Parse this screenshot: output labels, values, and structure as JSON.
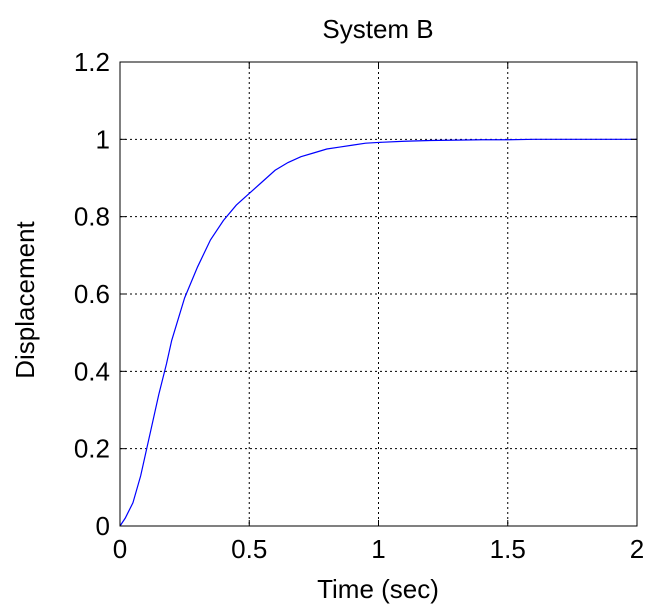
{
  "chart_data": {
    "type": "line",
    "title": "System B",
    "xlabel": "Time (sec)",
    "ylabel": "Displacement",
    "xlim": [
      0,
      2
    ],
    "ylim": [
      0,
      1.2
    ],
    "xticks": [
      0,
      0.5,
      1,
      1.5,
      2
    ],
    "yticks": [
      0,
      0.2,
      0.4,
      0.6,
      0.8,
      1,
      1.2
    ],
    "xtick_labels": [
      "0",
      "0.5",
      "1",
      "1.5",
      "2"
    ],
    "ytick_labels": [
      "0",
      "0.2",
      "0.4",
      "0.6",
      "0.8",
      "1",
      "1.2"
    ],
    "grid": true,
    "series": [
      {
        "color": "#0000ff",
        "x": [
          0,
          0.02,
          0.05,
          0.08,
          0.1,
          0.12,
          0.15,
          0.18,
          0.2,
          0.25,
          0.3,
          0.35,
          0.4,
          0.45,
          0.5,
          0.55,
          0.6,
          0.65,
          0.7,
          0.75,
          0.8,
          0.85,
          0.9,
          0.95,
          1.0,
          1.1,
          1.2,
          1.3,
          1.4,
          1.5,
          1.6,
          1.7,
          1.8,
          1.9,
          2.0
        ],
        "y": [
          0,
          0.02,
          0.06,
          0.13,
          0.19,
          0.25,
          0.34,
          0.42,
          0.48,
          0.59,
          0.67,
          0.74,
          0.79,
          0.83,
          0.86,
          0.89,
          0.92,
          0.94,
          0.955,
          0.965,
          0.975,
          0.98,
          0.985,
          0.99,
          0.992,
          0.995,
          0.997,
          0.998,
          0.999,
          0.999,
          1.0,
          1.0,
          1.0,
          1.0,
          1.0
        ]
      }
    ]
  }
}
